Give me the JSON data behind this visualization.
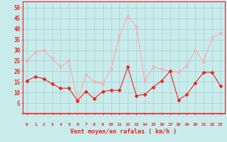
{
  "x": [
    0,
    1,
    2,
    3,
    4,
    5,
    6,
    7,
    8,
    9,
    10,
    11,
    12,
    13,
    14,
    15,
    16,
    17,
    18,
    19,
    20,
    21,
    22,
    23
  ],
  "vent_moyen": [
    15.5,
    17.5,
    16.5,
    14,
    12,
    12,
    6,
    10.5,
    7,
    10.5,
    11,
    11,
    22,
    8.5,
    9,
    12.5,
    15.5,
    20,
    6.5,
    9,
    14.5,
    19.5,
    19.5,
    13
  ],
  "vent_rafales": [
    25,
    29,
    30,
    26,
    22,
    25,
    6,
    18.5,
    15,
    14,
    21,
    37,
    46,
    41,
    15.5,
    22,
    21,
    20,
    19.5,
    22.5,
    30,
    24.5,
    36,
    38
  ],
  "line_moyen_color": "#ee2222",
  "line_rafales_color": "#ffaaaa",
  "bg_color": "#c8ecec",
  "grid_color": "#aacccc",
  "xlabel": "Vent moyen/en rafales ( km/h )",
  "yticks": [
    5,
    10,
    15,
    20,
    25,
    30,
    35,
    40,
    45,
    50
  ],
  "ylim": [
    0,
    53
  ],
  "xlim": [
    -0.5,
    23.5
  ]
}
